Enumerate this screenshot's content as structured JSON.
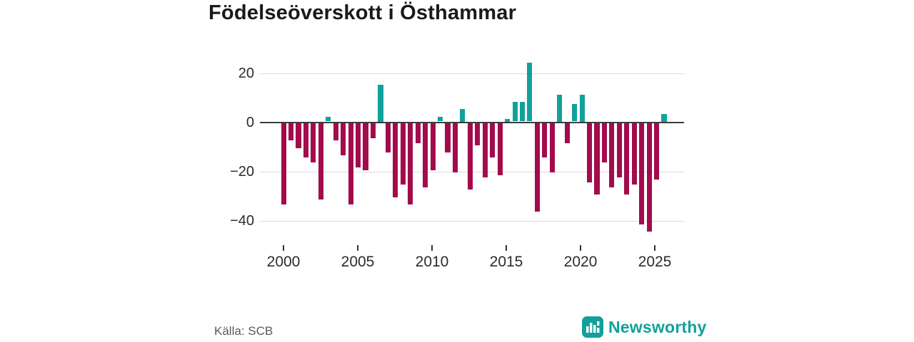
{
  "header": {
    "title": "Födelseöverskott i Östhammar"
  },
  "chart_data": {
    "type": "bar",
    "title": "Födelseöverskott i Östhammar",
    "xlabel": "",
    "ylabel": "",
    "x": [
      "2000 H1",
      "2000 H2",
      "2001 H1",
      "2001 H2",
      "2002 H1",
      "2002 H2",
      "2003 H1",
      "2003 H2",
      "2004 H1",
      "2004 H2",
      "2005 H1",
      "2005 H2",
      "2006 H1",
      "2006 H2",
      "2007 H1",
      "2007 H2",
      "2008 H1",
      "2008 H2",
      "2009 H1",
      "2009 H2",
      "2010 H1",
      "2010 H2",
      "2011 H1",
      "2011 H2",
      "2012 H1",
      "2012 H2",
      "2013 H1",
      "2013 H2",
      "2014 H1",
      "2014 H2",
      "2015 H1",
      "2015 H2",
      "2016 H1",
      "2016 H2",
      "2017 H1",
      "2017 H2",
      "2018 H1",
      "2018 H2",
      "2019 H1",
      "2019 H2",
      "2020 H1",
      "2020 H2",
      "2021 H1",
      "2021 H2",
      "2022 H1",
      "2022 H2",
      "2023 H1",
      "2023 H2",
      "2024 H1",
      "2024 H2",
      "2025 H1",
      "2025 H2"
    ],
    "values": [
      -33,
      -7,
      -10,
      -14,
      -16,
      -31,
      2,
      -7,
      -13,
      -33,
      -18,
      -19,
      -6,
      15,
      -12,
      -30,
      -25,
      -33,
      -8,
      -26,
      -19,
      2,
      -12,
      -20,
      5,
      -27,
      -9,
      -22,
      -14,
      -21,
      1,
      8,
      8,
      24,
      -36,
      -14,
      -20,
      11,
      -8,
      7,
      11,
      -24,
      -29,
      -16,
      -26,
      -22,
      -29,
      -25,
      -41,
      -44,
      -23,
      3
    ],
    "ylim": [
      -48,
      28
    ],
    "yticks": [
      20,
      0,
      -20,
      -40
    ],
    "ytick_labels": [
      "20",
      "0",
      "−20",
      "−40"
    ],
    "xticks": [
      2000,
      2005,
      2010,
      2015,
      2020,
      2025
    ],
    "grid": true,
    "legend": "none",
    "colors": {
      "positive": "#12A19A",
      "negative": "#A30B4D",
      "axis": "#3d3d3d",
      "gridline": "#dcdcdc",
      "tick": "#333333"
    }
  },
  "footer": {
    "source": "Källa: SCB",
    "brand": "Newsworthy"
  },
  "icons": {
    "logo": "newsworthy-bar-chart-logo"
  }
}
